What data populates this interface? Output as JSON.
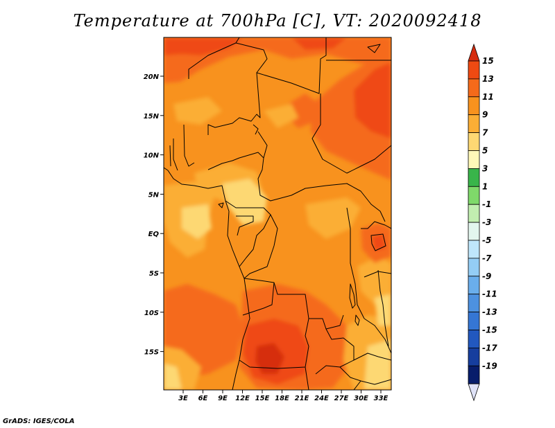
{
  "title": "Temperature at 700hPa [C], VT: 2020092418",
  "credit": "GrADS: IGES/COLA",
  "map": {
    "lat_labels": [
      "20N",
      "15N",
      "10N",
      "5N",
      "EQ",
      "5S",
      "10S",
      "15S"
    ],
    "lon_labels": [
      "3E",
      "6E",
      "9E",
      "12E",
      "15E",
      "18E",
      "21E",
      "24E",
      "27E",
      "30E",
      "33E"
    ]
  },
  "colorbar": {
    "labels": [
      "15",
      "13",
      "11",
      "9",
      "7",
      "5",
      "3",
      "1",
      "-1",
      "-3",
      "-5",
      "-7",
      "-9",
      "-11",
      "-13",
      "-15",
      "-17",
      "-19"
    ],
    "colors": [
      "#d62d0f",
      "#ef4a12",
      "#f56a1a",
      "#f8921e",
      "#fbae35",
      "#fdd873",
      "#fff8b8",
      "#39b54a",
      "#7fd96a",
      "#c2eeb0",
      "#e3f6ee",
      "#bfe6fb",
      "#94cdf5",
      "#6aaeec",
      "#4d91e0",
      "#3576d4",
      "#2258bf",
      "#163e9e",
      "#081d6b",
      "#dfe2f7"
    ],
    "top_color": "#d62d0f",
    "bottom_color": "#dfe2f7"
  }
}
